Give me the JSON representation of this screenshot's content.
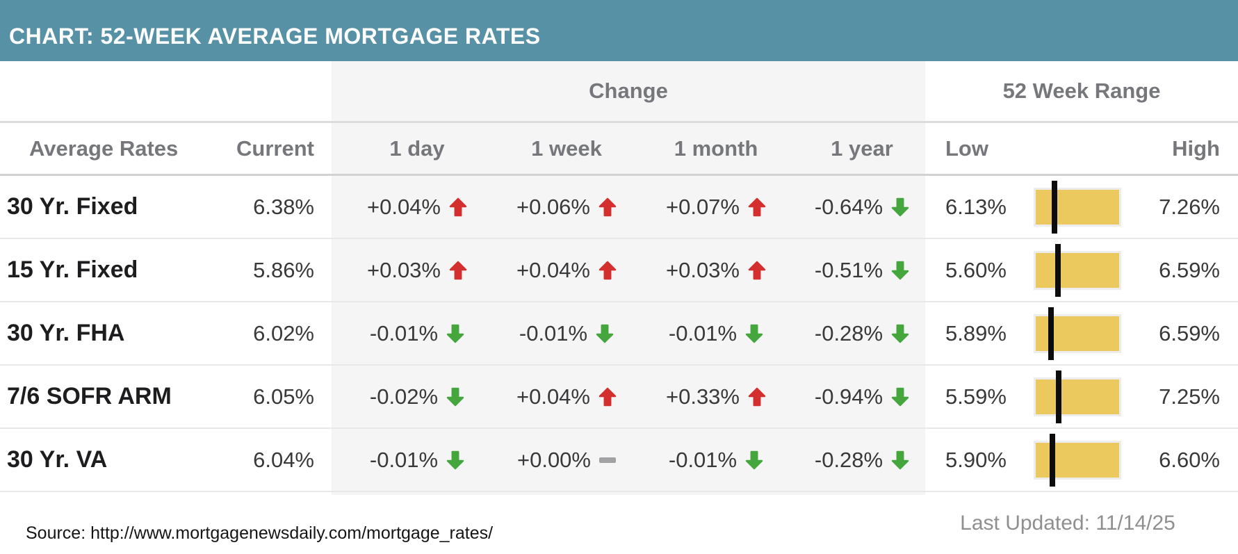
{
  "title": "CHART: 52-WEEK AVERAGE MORTGAGE RATES",
  "header": {
    "change_group": "Change",
    "range_group": "52 Week Range",
    "col_rates": "Average Rates",
    "col_current": "Current",
    "col_1day": "1 day",
    "col_1week": "1 week",
    "col_1month": "1 month",
    "col_1year": "1 year",
    "col_low": "Low",
    "col_high": "High"
  },
  "rows": [
    {
      "label": "30 Yr. Fixed",
      "current": "6.38%",
      "one_day": {
        "text": "+0.04%",
        "dir": "up"
      },
      "one_week": {
        "text": "+0.06%",
        "dir": "up"
      },
      "one_month": {
        "text": "+0.07%",
        "dir": "up"
      },
      "one_year": {
        "text": "-0.64%",
        "dir": "down"
      },
      "low": "6.13%",
      "high": "7.26%",
      "low_val": 6.13,
      "high_val": 7.26,
      "current_val": 6.38
    },
    {
      "label": "15 Yr. Fixed",
      "current": "5.86%",
      "one_day": {
        "text": "+0.03%",
        "dir": "up"
      },
      "one_week": {
        "text": "+0.04%",
        "dir": "up"
      },
      "one_month": {
        "text": "+0.03%",
        "dir": "up"
      },
      "one_year": {
        "text": "-0.51%",
        "dir": "down"
      },
      "low": "5.60%",
      "high": "6.59%",
      "low_val": 5.6,
      "high_val": 6.59,
      "current_val": 5.86
    },
    {
      "label": "30 Yr. FHA",
      "current": "6.02%",
      "one_day": {
        "text": "-0.01%",
        "dir": "down"
      },
      "one_week": {
        "text": "-0.01%",
        "dir": "down"
      },
      "one_month": {
        "text": "-0.01%",
        "dir": "down"
      },
      "one_year": {
        "text": "-0.28%",
        "dir": "down"
      },
      "low": "5.89%",
      "high": "6.59%",
      "low_val": 5.89,
      "high_val": 6.59,
      "current_val": 6.02
    },
    {
      "label": "7/6 SOFR ARM",
      "current": "6.05%",
      "one_day": {
        "text": "-0.02%",
        "dir": "down"
      },
      "one_week": {
        "text": "+0.04%",
        "dir": "up"
      },
      "one_month": {
        "text": "+0.33%",
        "dir": "up"
      },
      "one_year": {
        "text": "-0.94%",
        "dir": "down"
      },
      "low": "5.59%",
      "high": "7.25%",
      "low_val": 5.59,
      "high_val": 7.25,
      "current_val": 6.05
    },
    {
      "label": "30 Yr. VA",
      "current": "6.04%",
      "one_day": {
        "text": "-0.01%",
        "dir": "down"
      },
      "one_week": {
        "text": "+0.00%",
        "dir": "flat"
      },
      "one_month": {
        "text": "-0.01%",
        "dir": "down"
      },
      "one_year": {
        "text": "-0.28%",
        "dir": "down"
      },
      "low": "5.90%",
      "high": "6.60%",
      "low_val": 5.9,
      "high_val": 6.6,
      "current_val": 6.04
    }
  ],
  "footer": {
    "source": "Source: http://www.mortgagenewsdaily.com/mortgage_rates/",
    "last_updated": "Last Updated: 11/14/25"
  },
  "colors": {
    "teal": "#5791a5",
    "red": "#d42f2f",
    "green": "#46a63e",
    "gold": "#ecc95f",
    "band": "#f5f5f6",
    "hdr": "#76777b",
    "ink": "#1d1d1f",
    "val": "#39393b",
    "muted": "#8f8f91",
    "dash": "#a2a2a4"
  },
  "chart_data": {
    "type": "table",
    "title": "CHART: 52-WEEK AVERAGE MORTGAGE RATES",
    "column_groups": [
      "Change",
      "52 Week Range"
    ],
    "columns": [
      "Average Rates",
      "Current",
      "1 day",
      "1 week",
      "1 month",
      "1 year",
      "Low",
      "High"
    ],
    "rows": [
      {
        "name": "30 Yr. Fixed",
        "current": 6.38,
        "change_1day": 0.04,
        "change_1week": 0.06,
        "change_1month": 0.07,
        "change_1year": -0.64,
        "low": 6.13,
        "high": 7.26
      },
      {
        "name": "15 Yr. Fixed",
        "current": 5.86,
        "change_1day": 0.03,
        "change_1week": 0.04,
        "change_1month": 0.03,
        "change_1year": -0.51,
        "low": 5.6,
        "high": 6.59
      },
      {
        "name": "30 Yr. FHA",
        "current": 6.02,
        "change_1day": -0.01,
        "change_1week": -0.01,
        "change_1month": -0.01,
        "change_1year": -0.28,
        "low": 5.89,
        "high": 6.59
      },
      {
        "name": "7/6 SOFR ARM",
        "current": 6.05,
        "change_1day": -0.02,
        "change_1week": 0.04,
        "change_1month": 0.33,
        "change_1year": -0.94,
        "low": 5.59,
        "high": 7.25
      },
      {
        "name": "30 Yr. VA",
        "current": 6.04,
        "change_1day": -0.01,
        "change_1week": 0.0,
        "change_1month": -0.01,
        "change_1year": -0.28,
        "low": 5.9,
        "high": 6.6
      }
    ],
    "range_marker": "current rate position between 52-week low and high",
    "source": "http://www.mortgagenewsdaily.com/mortgage_rates/",
    "last_updated": "11/14/25"
  }
}
